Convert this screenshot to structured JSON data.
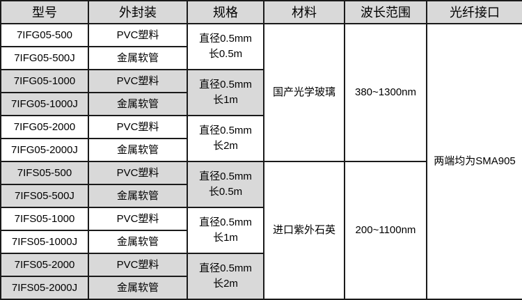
{
  "headers": [
    "型号",
    "外封装",
    "规格",
    "材料",
    "波长范围",
    "光纤接口"
  ],
  "rows": [
    {
      "model": "7IFG05-500",
      "pkg": "PVC塑料"
    },
    {
      "model": "7IFG05-500J",
      "pkg": "金属软管"
    },
    {
      "model": "7IFG05-1000",
      "pkg": "PVC塑料"
    },
    {
      "model": "7IFG05-1000J",
      "pkg": "金属软管"
    },
    {
      "model": "7IFG05-2000",
      "pkg": "PVC塑料"
    },
    {
      "model": "7IFG05-2000J",
      "pkg": "金属软管"
    },
    {
      "model": "7IFS05-500",
      "pkg": "PVC塑料"
    },
    {
      "model": "7IFS05-500J",
      "pkg": "金属软管"
    },
    {
      "model": "7IFS05-1000",
      "pkg": "PVC塑料"
    },
    {
      "model": "7IFS05-1000J",
      "pkg": "金属软管"
    },
    {
      "model": "7IFS05-2000",
      "pkg": "PVC塑料"
    },
    {
      "model": "7IFS05-2000J",
      "pkg": "金属软管"
    }
  ],
  "specs": [
    {
      "l1": "直径0.5mm",
      "l2": "长0.5m"
    },
    {
      "l1": "直径0.5mm",
      "l2": "长1m"
    },
    {
      "l1": "直径0.5mm",
      "l2": "长2m"
    },
    {
      "l1": "直径0.5mm",
      "l2": "长0.5m"
    },
    {
      "l1": "直径0.5mm",
      "l2": "长1m"
    },
    {
      "l1": "直径0.5mm",
      "l2": "长2m"
    }
  ],
  "materials": [
    "国产光学玻璃",
    "进口紫外石英"
  ],
  "wavelengths": [
    "380~1300nm",
    "200~1100nm"
  ],
  "interface": "两端均为SMA905",
  "colors": {
    "header_bg": "#d9d9d9",
    "shaded_row_bg": "#d9d9d9",
    "border": "#1a1a1a"
  }
}
